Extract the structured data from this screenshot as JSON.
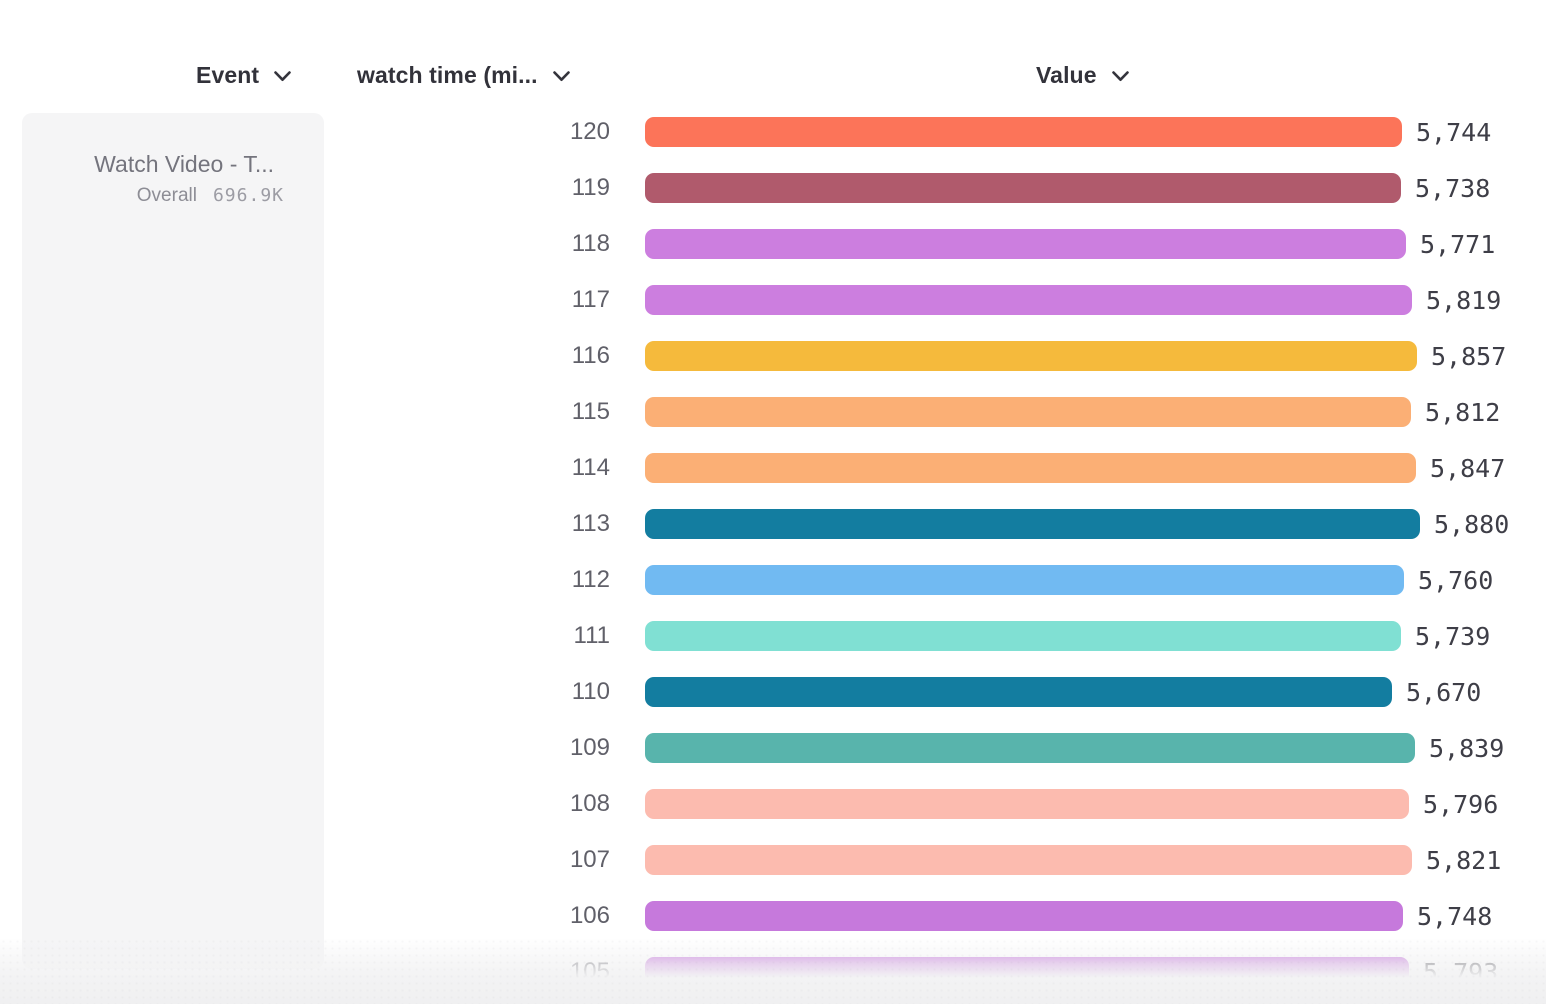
{
  "headers": {
    "event": "Event",
    "watch_time": "watch time (mi...",
    "value": "Value"
  },
  "event_card": {
    "title": "Watch Video - T...",
    "metric_label": "Overall",
    "metric_value": "696.9K"
  },
  "chart_data": {
    "type": "bar",
    "orientation": "horizontal",
    "title": "",
    "xlabel": "Value",
    "ylabel": "watch time (mi...",
    "series_name": "Watch Video - T... (Overall 696.9K)",
    "axis_max": 5880,
    "grid": false,
    "legend_position": "none",
    "categories": [
      "120",
      "119",
      "118",
      "117",
      "116",
      "115",
      "114",
      "113",
      "112",
      "111",
      "110",
      "109",
      "108",
      "107",
      "106",
      "105"
    ],
    "values": [
      5744,
      5738,
      5771,
      5819,
      5857,
      5812,
      5847,
      5880,
      5760,
      5739,
      5670,
      5839,
      5796,
      5821,
      5748,
      5793
    ],
    "value_labels": [
      "5,744",
      "5,738",
      "5,771",
      "5,819",
      "5,857",
      "5,812",
      "5,847",
      "5,880",
      "5,760",
      "5,739",
      "5,670",
      "5,839",
      "5,796",
      "5,821",
      "5,748",
      "5,793"
    ],
    "bar_colors": [
      "#fc7459",
      "#b05a6c",
      "#cc7edf",
      "#cc7edf",
      "#f5ba3c",
      "#fbaf75",
      "#fbaf75",
      "#137da0",
      "#71baf2",
      "#80e0d3",
      "#137da0",
      "#58b4ac",
      "#fcbbaf",
      "#fcbbaf",
      "#c679dc",
      "#c679dc"
    ]
  },
  "colors": {
    "header_text": "#32323a",
    "row_label_text": "#606069",
    "value_text": "#3e3e47",
    "card_background": "#f5f5f6",
    "card_title_text": "#74747d",
    "card_metric_text": "#9c9ca4"
  }
}
